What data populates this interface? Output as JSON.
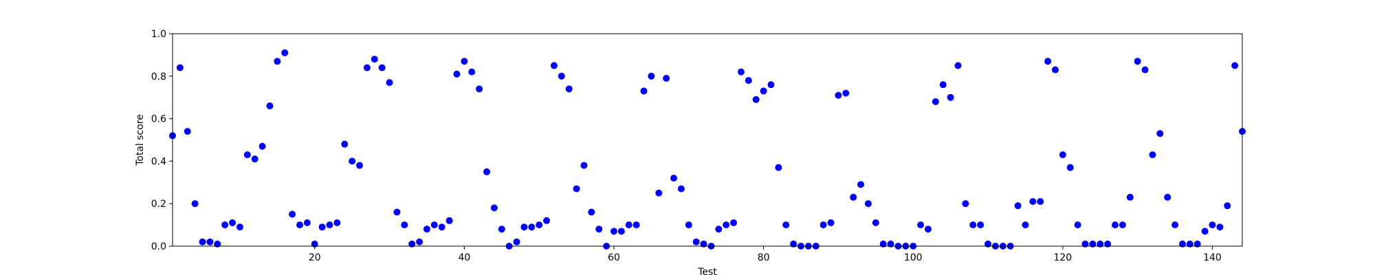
{
  "chart_data": {
    "type": "scatter",
    "title": "",
    "xlabel": "Test",
    "ylabel": "Total score",
    "xlim": [
      1,
      144
    ],
    "ylim": [
      0,
      1
    ],
    "x_ticks": [
      20,
      40,
      60,
      80,
      100,
      120,
      140
    ],
    "y_ticks": [
      0.0,
      0.2,
      0.4,
      0.6,
      0.8,
      1.0
    ],
    "y_tick_labels": [
      "0.0",
      "0.2",
      "0.4",
      "0.6",
      "0.8",
      "1.0"
    ],
    "grid": false,
    "marker_color": "#0000ff",
    "series": [
      {
        "x": [
          1,
          2,
          3,
          4,
          5,
          6,
          7,
          8,
          9,
          10,
          11,
          12,
          13,
          14,
          15,
          16,
          17,
          18,
          19,
          20,
          21,
          22,
          23,
          24,
          25,
          26,
          27,
          28,
          29,
          30,
          31,
          32,
          33,
          34,
          35,
          36,
          37,
          38,
          39,
          40,
          41,
          42,
          43,
          44,
          45,
          46,
          47,
          48,
          49,
          50,
          51,
          52,
          53,
          54,
          55,
          56,
          57,
          58,
          59,
          60,
          61,
          62,
          63,
          64,
          65,
          66,
          67,
          68,
          69,
          70,
          71,
          72,
          73,
          74,
          75,
          76,
          77,
          78,
          79,
          80,
          81,
          82,
          83,
          84,
          85,
          86,
          87,
          88,
          89,
          90,
          91,
          92,
          93,
          94,
          95,
          96,
          97,
          98,
          99,
          100,
          101,
          102,
          103,
          104,
          105,
          106,
          107,
          108,
          109,
          110,
          111,
          112,
          113,
          114,
          115,
          116,
          117,
          118,
          119,
          120,
          121,
          122,
          123,
          124,
          125,
          126,
          127,
          128,
          129,
          130,
          131,
          132,
          133,
          134,
          135,
          136,
          137,
          138,
          139,
          140,
          141,
          142,
          143,
          144
        ],
        "y": [
          0.52,
          0.84,
          0.54,
          0.2,
          0.02,
          0.02,
          0.01,
          0.1,
          0.11,
          0.09,
          0.43,
          0.41,
          0.47,
          0.66,
          0.87,
          0.91,
          0.15,
          0.1,
          0.11,
          0.01,
          0.09,
          0.1,
          0.11,
          0.48,
          0.4,
          0.38,
          0.84,
          0.88,
          0.84,
          0.77,
          0.16,
          0.1,
          0.01,
          0.02,
          0.08,
          0.1,
          0.09,
          0.12,
          0.81,
          0.87,
          0.82,
          0.74,
          0.35,
          0.18,
          0.08,
          0.0,
          0.02,
          0.09,
          0.09,
          0.1,
          0.12,
          0.85,
          0.8,
          0.74,
          0.27,
          0.38,
          0.16,
          0.08,
          0.0,
          0.07,
          0.07,
          0.1,
          0.1,
          0.73,
          0.8,
          0.25,
          0.79,
          0.32,
          0.27,
          0.1,
          0.02,
          0.01,
          0.0,
          0.08,
          0.1,
          0.11,
          0.82,
          0.78,
          0.69,
          0.73,
          0.76,
          0.37,
          0.1,
          0.01,
          0.0,
          0.0,
          0.0,
          0.1,
          0.11,
          0.71,
          0.72,
          0.23,
          0.29,
          0.2,
          0.11,
          0.01,
          0.01,
          0.0,
          0.0,
          0.0,
          0.1,
          0.08,
          0.68,
          0.76,
          0.7,
          0.85,
          0.2,
          0.1,
          0.1,
          0.01,
          0.0,
          0.0,
          0.0,
          0.19,
          0.1,
          0.21,
          0.21,
          0.87,
          0.83,
          0.43,
          0.37,
          0.1,
          0.01,
          0.01,
          0.01,
          0.01,
          0.1,
          0.1,
          0.23,
          0.87,
          0.83,
          0.43,
          0.53,
          0.23,
          0.1,
          0.01,
          0.01,
          0.01,
          0.07,
          0.1,
          0.09,
          0.19,
          0.85,
          0.54
        ]
      }
    ]
  }
}
